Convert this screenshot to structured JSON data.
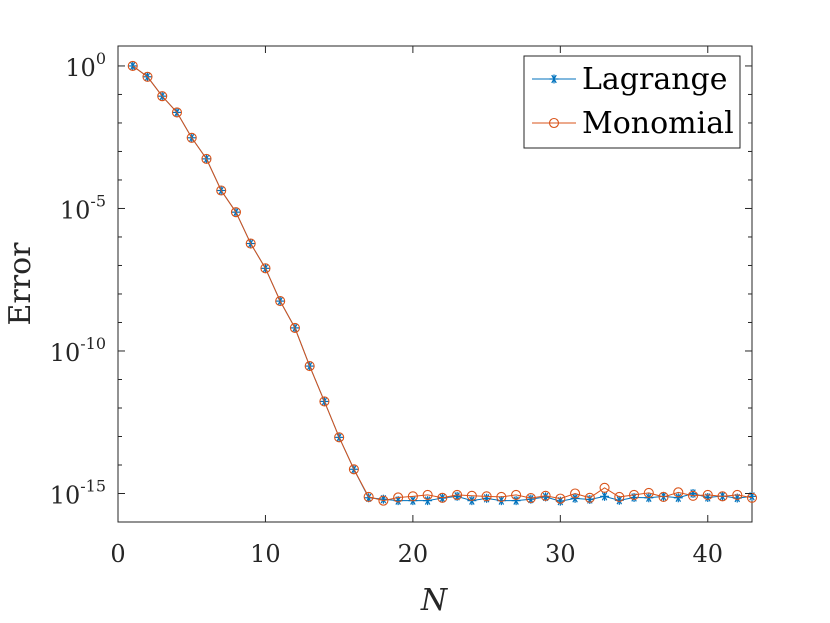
{
  "chart_data": {
    "type": "line",
    "xlabel": "N",
    "ylabel": "Error",
    "xlim": [
      0,
      43
    ],
    "ylim_log10": [
      -16,
      0.7
    ],
    "yscale": "log",
    "x_ticks": [
      0,
      10,
      20,
      30,
      40
    ],
    "x_tick_labels": [
      "0",
      "10",
      "20",
      "30",
      "40"
    ],
    "y_ticks": [
      {
        "base": "10",
        "exp": "0",
        "log10": 0
      },
      {
        "base": "10",
        "exp": "-5",
        "log10": -5
      },
      {
        "base": "10",
        "exp": "-10",
        "log10": -10
      },
      {
        "base": "10",
        "exp": "-15",
        "log10": -15
      }
    ],
    "x": [
      1,
      2,
      3,
      4,
      5,
      6,
      7,
      8,
      9,
      10,
      11,
      12,
      13,
      14,
      15,
      16,
      17,
      18,
      19,
      20,
      21,
      22,
      23,
      24,
      25,
      26,
      27,
      28,
      29,
      30,
      31,
      32,
      33,
      34,
      35,
      36,
      37,
      38,
      39,
      40,
      41,
      42,
      43
    ],
    "series": [
      {
        "name": "Lagrange",
        "color": "#0072BD",
        "marker": "star",
        "log10_values": [
          0.0,
          -0.38,
          -1.06,
          -1.63,
          -2.52,
          -3.26,
          -4.37,
          -5.13,
          -6.23,
          -7.1,
          -8.25,
          -9.19,
          -10.53,
          -11.77,
          -13.03,
          -14.15,
          -15.15,
          -15.2,
          -15.25,
          -15.25,
          -15.25,
          -15.16,
          -15.1,
          -15.25,
          -15.17,
          -15.25,
          -15.25,
          -15.2,
          -15.12,
          -15.27,
          -15.17,
          -15.21,
          -15.1,
          -15.24,
          -15.14,
          -15.15,
          -15.1,
          -15.15,
          -15.0,
          -15.14,
          -15.09,
          -15.16,
          -15.1
        ]
      },
      {
        "name": "Monomial",
        "color": "#D95319",
        "marker": "circle",
        "log10_values": [
          0.0,
          -0.38,
          -1.06,
          -1.63,
          -2.52,
          -3.26,
          -4.37,
          -5.13,
          -6.23,
          -7.1,
          -8.25,
          -9.19,
          -10.53,
          -11.77,
          -13.03,
          -14.15,
          -15.12,
          -15.25,
          -15.14,
          -15.1,
          -15.05,
          -15.15,
          -15.05,
          -15.08,
          -15.1,
          -15.12,
          -15.05,
          -15.16,
          -15.08,
          -15.18,
          -15.0,
          -15.15,
          -14.8,
          -15.12,
          -15.05,
          -14.98,
          -15.12,
          -14.96,
          -15.08,
          -15.05,
          -15.1,
          -15.05,
          -15.15
        ]
      }
    ],
    "legend": {
      "position": "top-right",
      "entries": [
        "Lagrange",
        "Monomial"
      ]
    }
  }
}
